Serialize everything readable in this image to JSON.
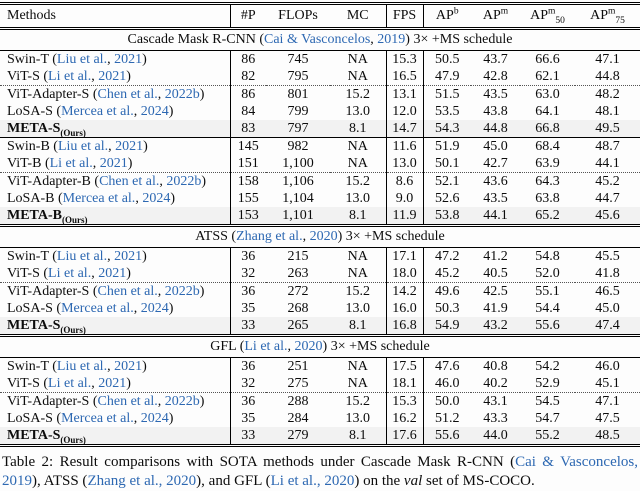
{
  "colors": {
    "link": "#2d68b2",
    "ours_row_bg": "#f2f2f2",
    "rule": "#000000"
  },
  "table": {
    "columns": [
      {
        "label": "Methods"
      },
      {
        "label": "#P"
      },
      {
        "label": "FLOPs"
      },
      {
        "label": "MC"
      },
      {
        "label": "FPS"
      },
      {
        "base": "AP",
        "sup": "b"
      },
      {
        "base": "AP",
        "sup": "m"
      },
      {
        "base": "AP",
        "sup": "m",
        "sub": "50"
      },
      {
        "base": "AP",
        "sup": "m",
        "sub": "75"
      }
    ],
    "rows": [
      {
        "kind": "section",
        "name": "Cascade Mask R-CNN",
        "cite": "Cai & Vasconcelos",
        "year": "2019",
        "suffix": "3× +MS schedule",
        "sep": "none"
      },
      {
        "kind": "method",
        "name": "Swin-T",
        "cite": "Liu et al.",
        "year": "2021",
        "values": [
          "86",
          "745",
          "NA",
          "15.3",
          "50.5",
          "43.7",
          "66.6",
          "47.1"
        ],
        "sep": "none",
        "ours": false
      },
      {
        "kind": "method",
        "name": "ViT-S",
        "cite": "Li et al.",
        "year": "2021",
        "values": [
          "82",
          "795",
          "NA",
          "16.5",
          "47.9",
          "42.8",
          "62.1",
          "44.8"
        ],
        "sep": "none",
        "ours": false
      },
      {
        "kind": "method",
        "name": "ViT-Adapter-S",
        "cite": "Chen et al.",
        "year": "2022b",
        "values": [
          "86",
          "801",
          "15.2",
          "13.1",
          "51.5",
          "43.5",
          "63.0",
          "48.2"
        ],
        "sep": "dotted",
        "ours": false
      },
      {
        "kind": "method",
        "name": "LoSA-S",
        "cite": "Mercea et al.",
        "year": "2024",
        "values": [
          "84",
          "799",
          "13.0",
          "12.0",
          "53.5",
          "43.8",
          "64.1",
          "48.1"
        ],
        "sep": "none",
        "ours": false
      },
      {
        "kind": "method",
        "name": "META-S",
        "ours_tag": "(Ours)",
        "values": [
          "83",
          "797",
          "8.1",
          "14.7",
          "54.3",
          "44.8",
          "66.8",
          "49.5"
        ],
        "sep": "none",
        "ours": true
      },
      {
        "kind": "method",
        "name": "Swin-B",
        "cite": "Liu et al.",
        "year": "2021",
        "values": [
          "145",
          "982",
          "NA",
          "11.6",
          "51.9",
          "45.0",
          "68.4",
          "48.7"
        ],
        "sep": "solid",
        "ours": false
      },
      {
        "kind": "method",
        "name": "ViT-B",
        "cite": "Li et al.",
        "year": "2021",
        "values": [
          "151",
          "1,100",
          "NA",
          "13.0",
          "50.1",
          "42.7",
          "63.9",
          "44.1"
        ],
        "sep": "none",
        "ours": false
      },
      {
        "kind": "method",
        "name": "ViT-Adapter-B",
        "cite": "Chen et al.",
        "year": "2022b",
        "values": [
          "158",
          "1,106",
          "15.2",
          "8.6",
          "52.1",
          "43.6",
          "64.3",
          "45.2"
        ],
        "sep": "dotted",
        "ours": false
      },
      {
        "kind": "method",
        "name": "LoSA-B",
        "cite": "Mercea et al.",
        "year": "2024",
        "values": [
          "155",
          "1,104",
          "13.0",
          "9.0",
          "52.6",
          "43.5",
          "63.8",
          "44.7"
        ],
        "sep": "none",
        "ours": false
      },
      {
        "kind": "method",
        "name": "META-B",
        "ours_tag": "(Ours)",
        "values": [
          "153",
          "1,101",
          "8.1",
          "11.9",
          "53.8",
          "44.1",
          "65.2",
          "45.6"
        ],
        "sep": "none",
        "ours": true
      },
      {
        "kind": "section",
        "name": "ATSS",
        "cite": "Zhang et al.",
        "year": "2020",
        "suffix": "3× +MS schedule",
        "sep": "double"
      },
      {
        "kind": "method",
        "name": "Swin-T",
        "cite": "Liu et al.",
        "year": "2021",
        "values": [
          "36",
          "215",
          "NA",
          "17.1",
          "47.2",
          "41.2",
          "54.8",
          "45.5"
        ],
        "sep": "none",
        "ours": false
      },
      {
        "kind": "method",
        "name": "ViT-S",
        "cite": "Li et al.",
        "year": "2021",
        "values": [
          "32",
          "263",
          "NA",
          "18.0",
          "45.2",
          "40.5",
          "52.0",
          "41.8"
        ],
        "sep": "none",
        "ours": false
      },
      {
        "kind": "method",
        "name": "ViT-Adapter-S",
        "cite": "Chen et al.",
        "year": "2022b",
        "values": [
          "36",
          "272",
          "15.2",
          "14.2",
          "49.6",
          "42.5",
          "55.1",
          "46.5"
        ],
        "sep": "dotted",
        "ours": false
      },
      {
        "kind": "method",
        "name": "LoSA-S",
        "cite": "Mercea et al.",
        "year": "2024",
        "values": [
          "35",
          "268",
          "13.0",
          "16.0",
          "50.3",
          "41.9",
          "54.4",
          "45.0"
        ],
        "sep": "none",
        "ours": false
      },
      {
        "kind": "method",
        "name": "META-S",
        "ours_tag": "(Ours)",
        "values": [
          "33",
          "265",
          "8.1",
          "16.8",
          "54.9",
          "43.2",
          "55.6",
          "47.4"
        ],
        "sep": "none",
        "ours": true
      },
      {
        "kind": "section",
        "name": "GFL",
        "cite": "Li et al.",
        "year": "2020",
        "suffix": "3× +MS schedule",
        "sep": "double"
      },
      {
        "kind": "method",
        "name": "Swin-T",
        "cite": "Liu et al.",
        "year": "2021",
        "values": [
          "36",
          "251",
          "NA",
          "17.5",
          "47.6",
          "40.8",
          "54.2",
          "46.0"
        ],
        "sep": "none",
        "ours": false
      },
      {
        "kind": "method",
        "name": "ViT-S",
        "cite": "Li et al.",
        "year": "2021",
        "values": [
          "32",
          "275",
          "NA",
          "18.1",
          "46.0",
          "40.2",
          "52.9",
          "45.1"
        ],
        "sep": "none",
        "ours": false
      },
      {
        "kind": "method",
        "name": "ViT-Adapter-S",
        "cite": "Chen et al.",
        "year": "2022b",
        "values": [
          "36",
          "288",
          "15.2",
          "15.3",
          "50.0",
          "43.1",
          "54.5",
          "47.1"
        ],
        "sep": "dotted",
        "ours": false
      },
      {
        "kind": "method",
        "name": "LoSA-S",
        "cite": "Mercea et al.",
        "year": "2024",
        "values": [
          "35",
          "284",
          "13.0",
          "16.2",
          "51.2",
          "43.3",
          "54.7",
          "47.5"
        ],
        "sep": "none",
        "ours": false
      },
      {
        "kind": "method",
        "name": "META-S",
        "ours_tag": "(Ours)",
        "values": [
          "33",
          "279",
          "8.1",
          "17.6",
          "55.6",
          "44.0",
          "55.2",
          "48.5"
        ],
        "sep": "none",
        "ours": true
      }
    ]
  },
  "caption": {
    "parts": [
      {
        "t": "Table 2: Result comparisons with SOTA methods under Cascade Mask R-CNN ("
      },
      {
        "t": "Cai & Vasconcelos, 2019",
        "link": true
      },
      {
        "t": "), ATSS ("
      },
      {
        "t": "Zhang et al., 2020",
        "link": true
      },
      {
        "t": "), and GFL ("
      },
      {
        "t": "Li et al., 2020",
        "link": true
      },
      {
        "t": ") on the "
      },
      {
        "t": "val",
        "italic": true
      },
      {
        "t": " set of MS-COCO."
      }
    ]
  }
}
